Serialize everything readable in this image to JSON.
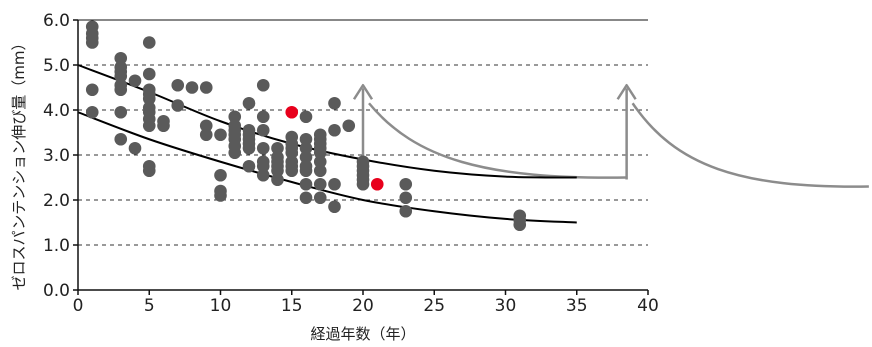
{
  "chart_data": {
    "type": "scatter",
    "title": "",
    "xlabel": "経過年数（年）",
    "ylabel": "ゼロスパンテンション伸び量（mm）",
    "xlim": [
      0,
      40
    ],
    "ylim": [
      0,
      6
    ],
    "xticks": [
      "0",
      "5",
      "10",
      "15",
      "20",
      "25",
      "30",
      "35",
      "40"
    ],
    "yticks": [
      "0.0",
      "1.0",
      "2.0",
      "3.0",
      "4.0",
      "5.0",
      "6.0"
    ],
    "grid": "horizontal-dashed",
    "colors": {
      "points": "#5a5a5a",
      "highlight": "#e8001c",
      "curves": "#000000",
      "annotation": "#8c8c8c"
    },
    "series": [
      {
        "points": [
          [
            1,
            5.85
          ],
          [
            1,
            5.7
          ],
          [
            1,
            5.6
          ],
          [
            1,
            5.5
          ],
          [
            1,
            4.45
          ],
          [
            1,
            3.95
          ],
          [
            3,
            5.15
          ],
          [
            3,
            4.95
          ],
          [
            3,
            4.85
          ],
          [
            3,
            4.75
          ],
          [
            3,
            4.55
          ],
          [
            3,
            4.45
          ],
          [
            3,
            3.95
          ],
          [
            3,
            3.35
          ],
          [
            4,
            4.65
          ],
          [
            4,
            3.15
          ],
          [
            5,
            5.5
          ],
          [
            5,
            4.8
          ],
          [
            5,
            4.45
          ],
          [
            5,
            4.35
          ],
          [
            5,
            4.25
          ],
          [
            5,
            4.05
          ],
          [
            5,
            3.95
          ],
          [
            5,
            3.8
          ],
          [
            5,
            3.65
          ],
          [
            5,
            2.75
          ],
          [
            5,
            2.65
          ],
          [
            6,
            3.75
          ],
          [
            6,
            3.65
          ],
          [
            7,
            4.55
          ],
          [
            7,
            4.1
          ],
          [
            8,
            4.5
          ],
          [
            9,
            4.5
          ],
          [
            9,
            3.65
          ],
          [
            9,
            3.45
          ],
          [
            10,
            3.45
          ],
          [
            10,
            2.55
          ],
          [
            10,
            2.2
          ],
          [
            10,
            2.1
          ],
          [
            11,
            3.85
          ],
          [
            11,
            3.65
          ],
          [
            11,
            3.55
          ],
          [
            11,
            3.45
          ],
          [
            11,
            3.35
          ],
          [
            11,
            3.2
          ],
          [
            11,
            3.05
          ],
          [
            12,
            4.15
          ],
          [
            12,
            3.55
          ],
          [
            12,
            3.45
          ],
          [
            12,
            3.35
          ],
          [
            12,
            3.25
          ],
          [
            12,
            3.15
          ],
          [
            12,
            2.75
          ],
          [
            13,
            4.55
          ],
          [
            13,
            3.85
          ],
          [
            13,
            3.55
          ],
          [
            13,
            3.15
          ],
          [
            13,
            2.85
          ],
          [
            13,
            2.75
          ],
          [
            13,
            2.55
          ],
          [
            14,
            3.15
          ],
          [
            14,
            2.95
          ],
          [
            14,
            2.85
          ],
          [
            14,
            2.75
          ],
          [
            14,
            2.65
          ],
          [
            14,
            2.45
          ],
          [
            15,
            3.4
          ],
          [
            15,
            3.25
          ],
          [
            15,
            3.15
          ],
          [
            15,
            3.05
          ],
          [
            15,
            2.85
          ],
          [
            15,
            2.75
          ],
          [
            15,
            2.65
          ],
          [
            16,
            3.85
          ],
          [
            16,
            3.35
          ],
          [
            16,
            3.15
          ],
          [
            16,
            2.95
          ],
          [
            16,
            2.75
          ],
          [
            16,
            2.65
          ],
          [
            16,
            2.35
          ],
          [
            16,
            2.05
          ],
          [
            17,
            3.45
          ],
          [
            17,
            3.35
          ],
          [
            17,
            3.25
          ],
          [
            17,
            3.15
          ],
          [
            17,
            3.05
          ],
          [
            17,
            2.85
          ],
          [
            17,
            2.65
          ],
          [
            17,
            2.35
          ],
          [
            17,
            2.05
          ],
          [
            18,
            4.15
          ],
          [
            18,
            3.55
          ],
          [
            18,
            2.35
          ],
          [
            18,
            1.85
          ],
          [
            19,
            3.65
          ],
          [
            20,
            2.85
          ],
          [
            20,
            2.75
          ],
          [
            20,
            2.65
          ],
          [
            20,
            2.55
          ],
          [
            20,
            2.45
          ],
          [
            20,
            2.35
          ],
          [
            23,
            2.35
          ],
          [
            23,
            2.05
          ],
          [
            23,
            1.75
          ],
          [
            31,
            1.65
          ],
          [
            31,
            1.55
          ],
          [
            31,
            1.45
          ]
        ]
      },
      {
        "points": [
          [
            15,
            3.95
          ],
          [
            21,
            2.35
          ]
        ]
      }
    ],
    "curves": [
      {
        "x": [
          0,
          5,
          10,
          15,
          20,
          25,
          30,
          35
        ],
        "y": [
          5.0,
          4.4,
          3.75,
          3.25,
          2.9,
          2.65,
          2.52,
          2.5
        ]
      },
      {
        "x": [
          0,
          5,
          10,
          15,
          20,
          25,
          30,
          35
        ],
        "y": [
          3.95,
          3.35,
          2.85,
          2.4,
          2.0,
          1.75,
          1.58,
          1.5
        ]
      }
    ],
    "annotations": [
      {
        "type": "arrow-curve",
        "base_x": 20,
        "base_y": 2.5,
        "tip_y": 4.55,
        "curve_end_x": 38.5,
        "curve_end_y": 2.5
      },
      {
        "type": "arrow-curve",
        "base_x": 38.5,
        "base_y": 2.5,
        "tip_y": 4.55,
        "curve_end_x": 55.5,
        "curve_end_y": 2.3
      }
    ]
  }
}
